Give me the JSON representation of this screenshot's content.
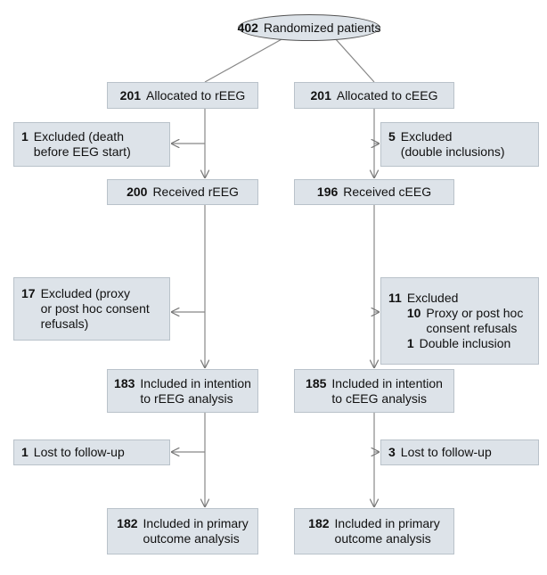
{
  "nodes": [
    {
      "count": 402,
      "label": [
        "Randomized patients"
      ]
    },
    {
      "count": 201,
      "label": [
        "Allocated to rEEG"
      ]
    },
    {
      "count": 201,
      "label": [
        "Allocated to cEEG"
      ]
    },
    {
      "count": 1,
      "label": [
        "Excluded (death",
        "before EEG start)"
      ]
    },
    {
      "count": 5,
      "label": [
        "Excluded",
        "(double inclusions)"
      ]
    },
    {
      "count": 200,
      "label": [
        "Received rEEG"
      ]
    },
    {
      "count": 196,
      "label": [
        "Received cEEG"
      ]
    },
    {
      "count": 17,
      "label": [
        "Excluded (proxy",
        "or post hoc consent",
        "refusals)"
      ]
    },
    {
      "count": 11,
      "label": [
        "Excluded"
      ],
      "items": [
        {
          "count": 10,
          "label": [
            "Proxy or post hoc",
            "consent refusals"
          ]
        },
        {
          "count": 1,
          "label": [
            "Double inclusion"
          ]
        }
      ]
    },
    {
      "count": 183,
      "label": [
        "Included in intention",
        "to rEEG analysis"
      ]
    },
    {
      "count": 185,
      "label": [
        "Included in intention",
        "to cEEG analysis"
      ]
    },
    {
      "count": 1,
      "label": [
        "Lost to follow-up"
      ]
    },
    {
      "count": 3,
      "label": [
        "Lost to follow-up"
      ]
    },
    {
      "count": 182,
      "label": [
        "Included in primary",
        "outcome analysis"
      ]
    },
    {
      "count": 182,
      "label": [
        "Included in primary",
        "outcome analysis"
      ]
    }
  ]
}
